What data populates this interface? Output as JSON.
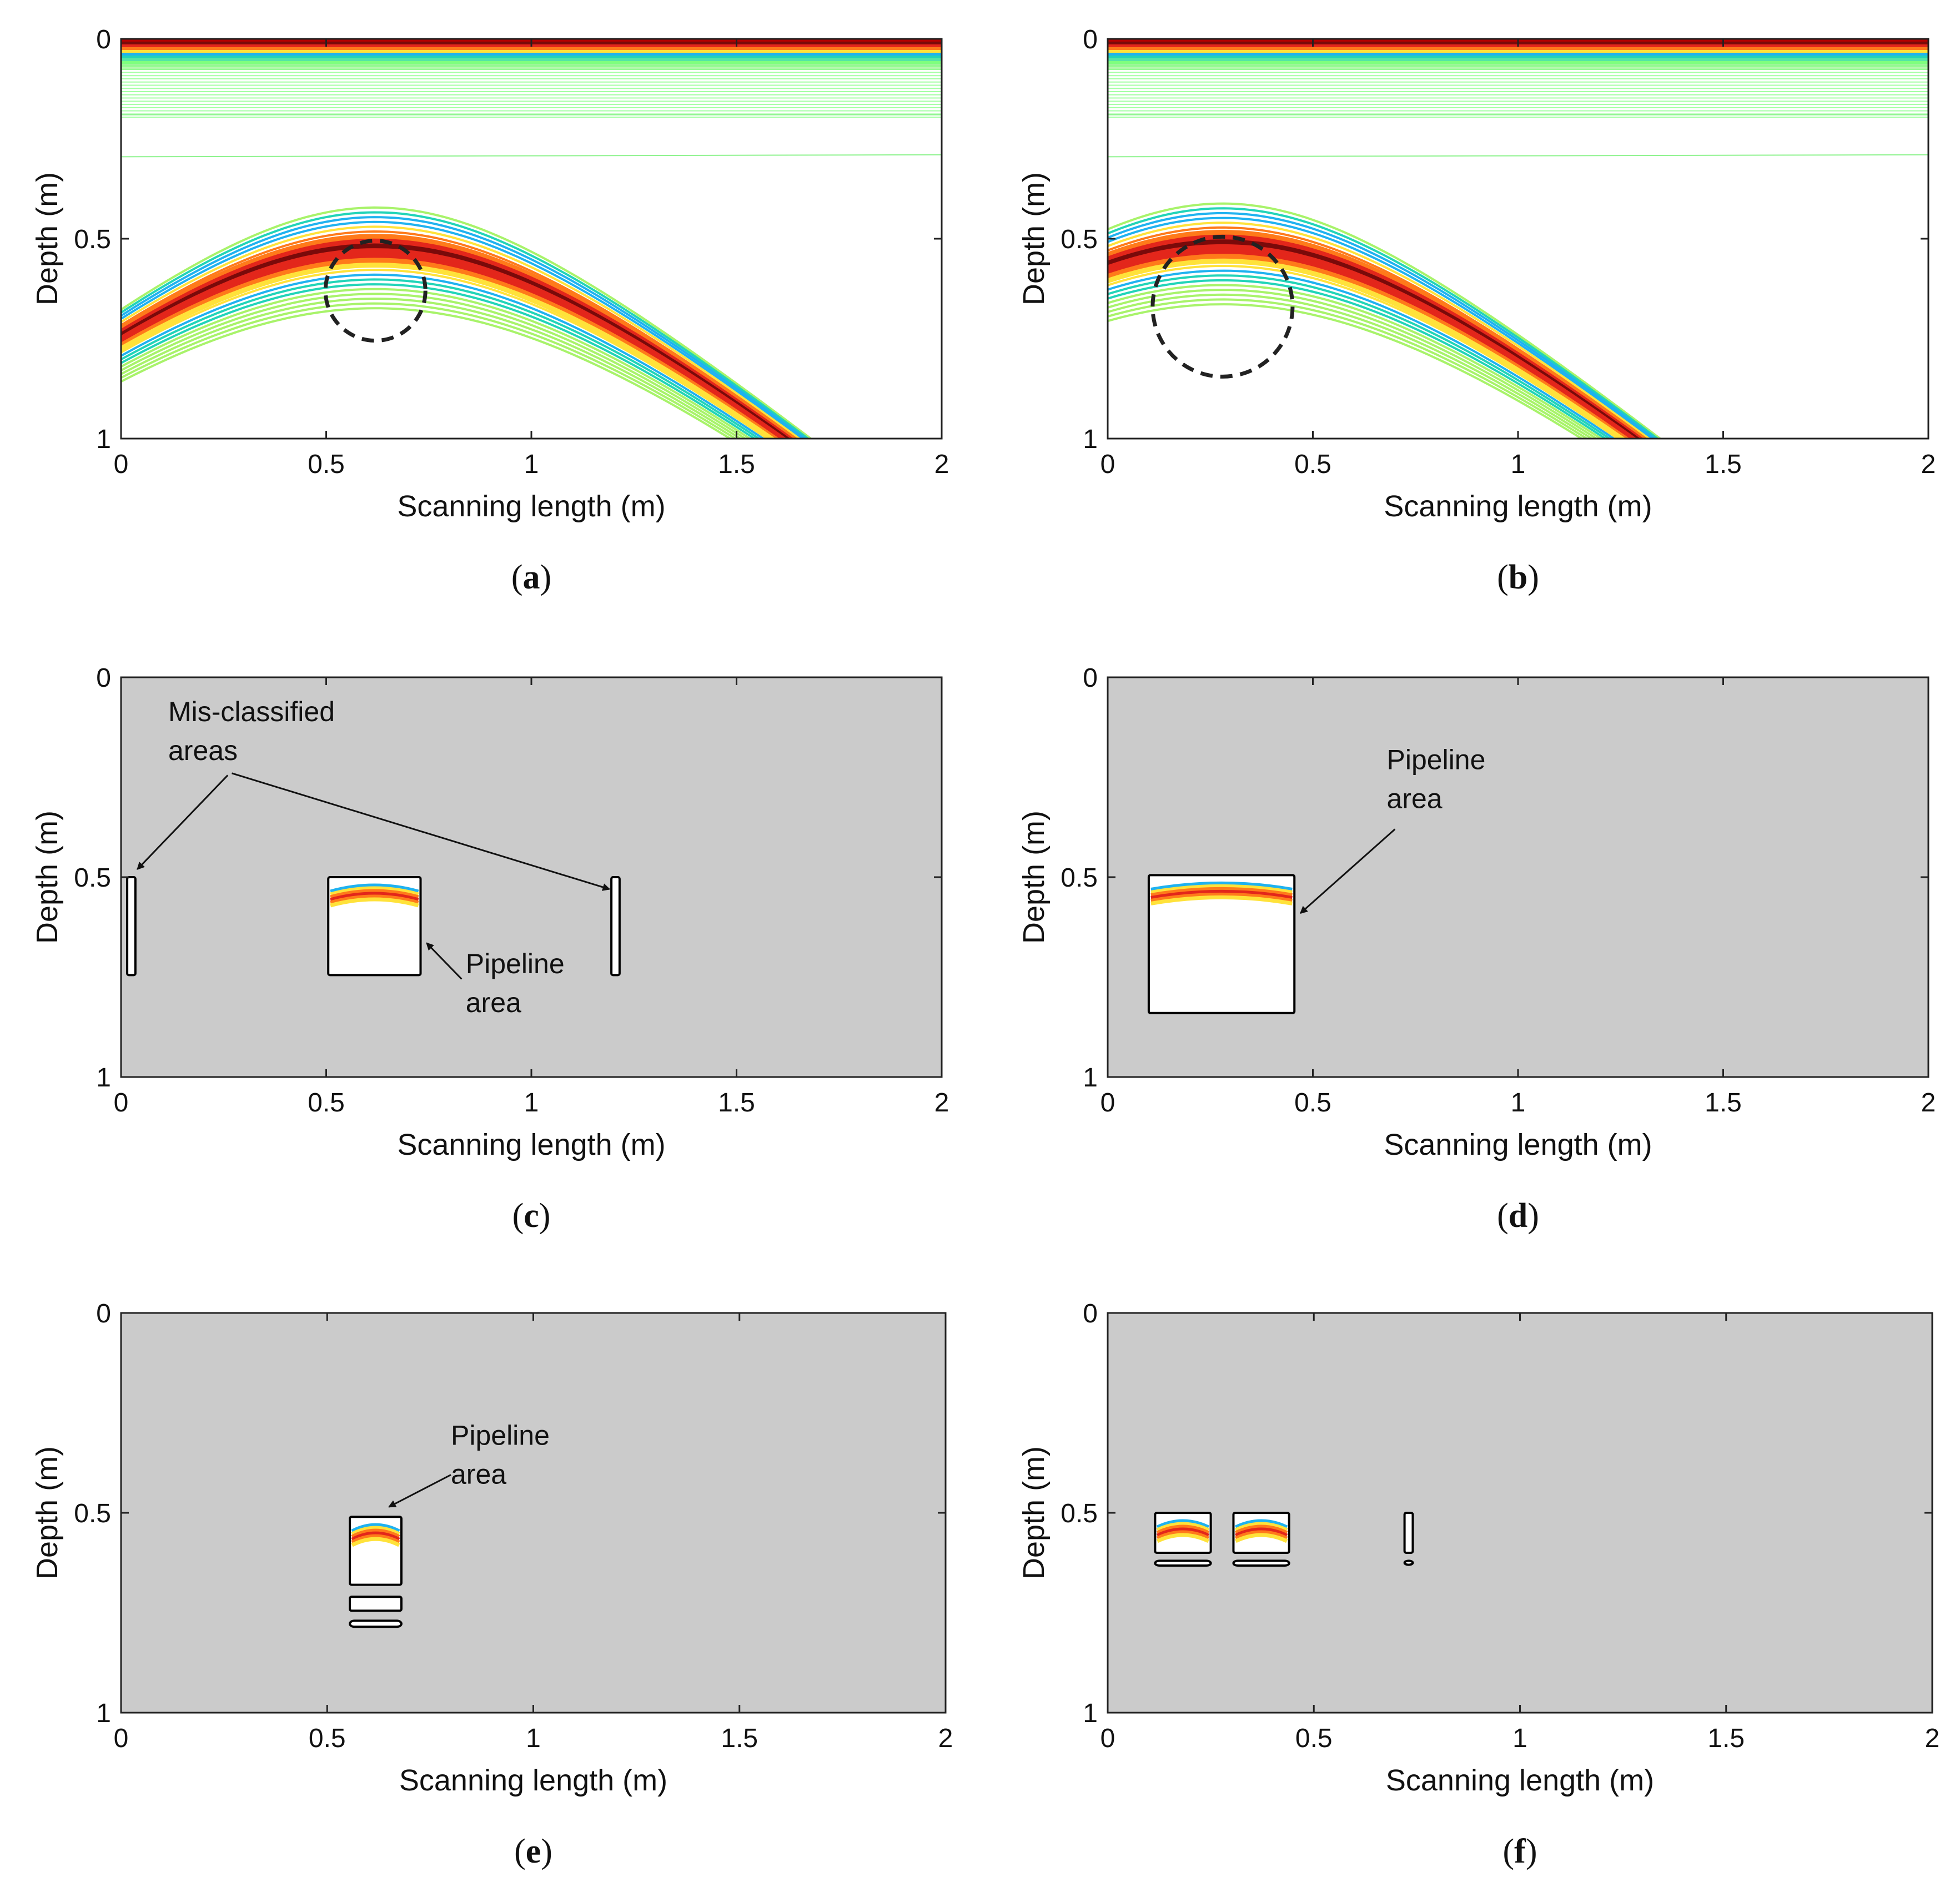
{
  "figure": {
    "panels": [
      {
        "id": "a",
        "caption_letter": "a",
        "type": "contour",
        "background": "white",
        "xlabel": "Scanning length (m)",
        "ylabel": "Depth (m)",
        "xlim": [
          0,
          2
        ],
        "ylim": [
          0,
          1
        ],
        "xticks": [
          "0",
          "0.5",
          "1",
          "1.5",
          "2"
        ],
        "yticks": [
          "0",
          "0.5",
          "1"
        ],
        "hyperbola": {
          "apex_x": 0.62,
          "apex_depth": 0.53
        },
        "pipe": {
          "cx": 0.62,
          "cy": 0.63,
          "r": 0.125
        },
        "boxes": [],
        "annotations": []
      },
      {
        "id": "b",
        "caption_letter": "b",
        "type": "contour",
        "background": "white",
        "xlabel": "Scanning length (m)",
        "ylabel": "Depth (m)",
        "xlim": [
          0,
          2
        ],
        "ylim": [
          0,
          1
        ],
        "xticks": [
          "0",
          "0.5",
          "1",
          "1.5",
          "2"
        ],
        "yticks": [
          "0",
          "0.5",
          "1"
        ],
        "hyperbola": {
          "apex_x": 0.28,
          "apex_depth": 0.52
        },
        "pipe": {
          "cx": 0.28,
          "cy": 0.67,
          "r": 0.175
        },
        "boxes": [],
        "annotations": []
      },
      {
        "id": "c",
        "caption_letter": "c",
        "type": "classified",
        "background": "gray",
        "xlabel": "Scanning length (m)",
        "ylabel": "Depth (m)",
        "xlim": [
          0,
          2
        ],
        "ylim": [
          0,
          1
        ],
        "xticks": [
          "0",
          "0.5",
          "1",
          "1.5",
          "2"
        ],
        "yticks": [
          "0",
          "0.5",
          "1"
        ],
        "boxes": [
          {
            "x0": 0.015,
            "x1": 0.035,
            "d0": 0.5,
            "d1": 0.745,
            "signal": false
          },
          {
            "x0": 0.505,
            "x1": 0.73,
            "d0": 0.5,
            "d1": 0.745,
            "signal": true
          },
          {
            "x0": 1.195,
            "x1": 1.215,
            "d0": 0.5,
            "d1": 0.745,
            "signal": false
          }
        ],
        "annotations": [
          {
            "lines": [
              "Mis-classified",
              "areas"
            ],
            "tx": 0.115,
            "ty": 0.11,
            "arrows": [
              {
                "x0": 0.26,
                "y0": 0.245,
                "x1": 0.04,
                "y1": 0.48
              },
              {
                "x0": 0.27,
                "y0": 0.24,
                "x1": 1.19,
                "y1": 0.53
              }
            ]
          },
          {
            "lines": [
              "Pipeline",
              "area"
            ],
            "tx": 0.84,
            "ty": 0.74,
            "arrows": [
              {
                "x0": 0.83,
                "y0": 0.755,
                "x1": 0.745,
                "y1": 0.665
              }
            ]
          }
        ]
      },
      {
        "id": "d",
        "caption_letter": "d",
        "type": "classified",
        "background": "gray",
        "xlabel": "Scanning length (m)",
        "ylabel": "Depth (m)",
        "xlim": [
          0,
          2
        ],
        "ylim": [
          0,
          1
        ],
        "xticks": [
          "0",
          "0.5",
          "1",
          "1.5",
          "2"
        ],
        "yticks": [
          "0",
          "0.5",
          "1"
        ],
        "boxes": [
          {
            "x0": 0.1,
            "x1": 0.455,
            "d0": 0.495,
            "d1": 0.84,
            "signal": true
          }
        ],
        "annotations": [
          {
            "lines": [
              "Pipeline",
              "area"
            ],
            "tx": 0.68,
            "ty": 0.23,
            "arrows": [
              {
                "x0": 0.7,
                "y0": 0.38,
                "x1": 0.47,
                "y1": 0.59
              }
            ]
          }
        ]
      },
      {
        "id": "e",
        "caption_letter": "e",
        "type": "classified",
        "background": "gray",
        "xlabel": "Scanning length (m)",
        "ylabel": "Depth (m)",
        "xlim": [
          0,
          2
        ],
        "ylim": [
          0,
          1
        ],
        "xticks": [
          "0",
          "0.5",
          "1",
          "1.5",
          "2"
        ],
        "yticks": [
          "0",
          "0.5",
          "1"
        ],
        "boxes": [
          {
            "x0": 0.555,
            "x1": 0.68,
            "d0": 0.51,
            "d1": 0.68,
            "signal": true
          },
          {
            "x0": 0.555,
            "x1": 0.68,
            "d0": 0.71,
            "d1": 0.745,
            "signal": false
          },
          {
            "x0": 0.555,
            "x1": 0.68,
            "d0": 0.77,
            "d1": 0.785,
            "signal": false
          }
        ],
        "annotations": [
          {
            "lines": [
              "Pipeline",
              "area"
            ],
            "tx": 0.8,
            "ty": 0.33,
            "arrows": [
              {
                "x0": 0.8,
                "y0": 0.405,
                "x1": 0.65,
                "y1": 0.485
              }
            ]
          }
        ]
      },
      {
        "id": "f",
        "caption_letter": "f",
        "type": "classified",
        "background": "gray",
        "xlabel": "Scanning length (m)",
        "ylabel": "Depth (m)",
        "xlim": [
          0,
          2
        ],
        "ylim": [
          0,
          1
        ],
        "xticks": [
          "0",
          "0.5",
          "1",
          "1.5",
          "2"
        ],
        "yticks": [
          "0",
          "0.5",
          "1"
        ],
        "boxes": [
          {
            "x0": 0.115,
            "x1": 0.25,
            "d0": 0.5,
            "d1": 0.6,
            "signal": true
          },
          {
            "x0": 0.115,
            "x1": 0.25,
            "d0": 0.62,
            "d1": 0.632,
            "signal": false
          },
          {
            "x0": 0.305,
            "x1": 0.44,
            "d0": 0.5,
            "d1": 0.6,
            "signal": true
          },
          {
            "x0": 0.305,
            "x1": 0.44,
            "d0": 0.62,
            "d1": 0.632,
            "signal": false
          },
          {
            "x0": 0.72,
            "x1": 0.74,
            "d0": 0.5,
            "d1": 0.6,
            "signal": false
          },
          {
            "x0": 0.72,
            "x1": 0.74,
            "d0": 0.62,
            "d1": 0.63,
            "signal": false
          }
        ],
        "annotations": []
      }
    ]
  },
  "chart_data": [
    {
      "type": "contour",
      "panel": "a",
      "title": "",
      "xlabel": "Scanning length (m)",
      "ylabel": "Depth (m)",
      "xlim": [
        0,
        2
      ],
      "ylim": [
        0,
        1
      ],
      "description_values": {
        "hyperbola_apex_x": 0.62,
        "hyperbola_apex_depth": 0.53,
        "pipe_center_x": 0.62,
        "pipe_center_depth": 0.63,
        "pipe_radius": 0.125
      }
    },
    {
      "type": "contour",
      "panel": "b",
      "title": "",
      "xlabel": "Scanning length (m)",
      "ylabel": "Depth (m)",
      "xlim": [
        0,
        2
      ],
      "ylim": [
        0,
        1
      ],
      "description_values": {
        "hyperbola_apex_x": 0.28,
        "hyperbola_apex_depth": 0.52,
        "pipe_center_x": 0.28,
        "pipe_center_depth": 0.67,
        "pipe_radius": 0.175
      }
    },
    {
      "type": "heatmap",
      "panel": "c",
      "title": "",
      "xlabel": "Scanning length (m)",
      "ylabel": "Depth (m)",
      "xlim": [
        0,
        2
      ],
      "ylim": [
        0,
        1
      ],
      "annotations": [
        "Mis-classified areas",
        "Pipeline area"
      ]
    },
    {
      "type": "heatmap",
      "panel": "d",
      "title": "",
      "xlabel": "Scanning length (m)",
      "ylabel": "Depth (m)",
      "xlim": [
        0,
        2
      ],
      "ylim": [
        0,
        1
      ],
      "annotations": [
        "Pipeline area"
      ]
    },
    {
      "type": "heatmap",
      "panel": "e",
      "title": "",
      "xlabel": "Scanning length (m)",
      "ylabel": "Depth (m)",
      "xlim": [
        0,
        2
      ],
      "ylim": [
        0,
        1
      ],
      "annotations": [
        "Pipeline area"
      ]
    },
    {
      "type": "heatmap",
      "panel": "f",
      "title": "",
      "xlabel": "Scanning length (m)",
      "ylabel": "Depth (m)",
      "xlim": [
        0,
        2
      ],
      "ylim": [
        0,
        1
      ],
      "annotations": []
    }
  ]
}
